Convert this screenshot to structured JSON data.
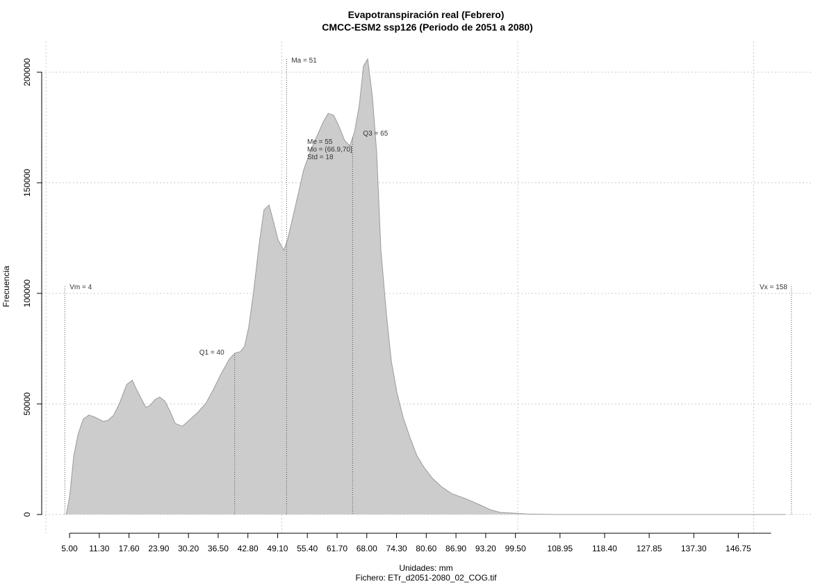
{
  "chart_data": {
    "type": "area",
    "title": "Evapotranspiración real (Febrero)",
    "subtitle": "CMCC-ESM2 ssp126 (Periodo de 2051 a 2080)",
    "x_label": "Unidades: mm",
    "caption": "Fichero: ETr_d2051-2080_02_COG.tif",
    "y_label": "Frecuencia",
    "color": "#cccccc",
    "line_color": "#9a9a9a",
    "grid": true,
    "xgrid": [
      0,
      50,
      100,
      150
    ],
    "xlim": [
      -0.9,
      162.6
    ],
    "ylim": [
      -8800,
      213800
    ],
    "xticks": [
      {
        "value": 5,
        "label": "5.00"
      },
      {
        "value": 11.3,
        "label": "11.30"
      },
      {
        "value": 17.6,
        "label": "17.60"
      },
      {
        "value": 23.9,
        "label": "23.90"
      },
      {
        "value": 30.2,
        "label": "30.20"
      },
      {
        "value": 36.5,
        "label": "36.50"
      },
      {
        "value": 42.8,
        "label": "42.80"
      },
      {
        "value": 49.1,
        "label": "49.10"
      },
      {
        "value": 55.4,
        "label": "55.40"
      },
      {
        "value": 61.7,
        "label": "61.70"
      },
      {
        "value": 68,
        "label": "68.00"
      },
      {
        "value": 74.3,
        "label": "74.30"
      },
      {
        "value": 80.6,
        "label": "80.60"
      },
      {
        "value": 86.9,
        "label": "86.90"
      },
      {
        "value": 93.2,
        "label": "93.20"
      },
      {
        "value": 99.5,
        "label": "99.50"
      },
      {
        "value": 108.95,
        "label": "108.95"
      },
      {
        "value": 118.4,
        "label": "118.40"
      },
      {
        "value": 127.85,
        "label": "127.85"
      },
      {
        "value": 137.3,
        "label": "137.30"
      },
      {
        "value": 146.75,
        "label": "146.75"
      }
    ],
    "yticks": [
      0,
      50000,
      100000,
      150000,
      200000
    ],
    "x": [
      4.3,
      5,
      5.9,
      6.8,
      7.9,
      9.1,
      10.4,
      12.1,
      13.1,
      14.3,
      15.6,
      17.1,
      18.3,
      19.4,
      21.2,
      22.1,
      23.1,
      24.1,
      25.2,
      26.4,
      27.4,
      28.9,
      30.3,
      32.2,
      33.9,
      35.5,
      37.1,
      38.9,
      40.1,
      41.2,
      42.1,
      43,
      44,
      45.2,
      46.2,
      47.3,
      48.2,
      49.2,
      50.4,
      51.2,
      52.4,
      53.6,
      54.6,
      55.8,
      57.3,
      58.8,
      59.8,
      61,
      62.1,
      63.3,
      64.4,
      65.4,
      66.4,
      67.3,
      68.2,
      69.2,
      70.1,
      71,
      72.2,
      73.2,
      74.4,
      75.7,
      77.2,
      78.6,
      80.1,
      81.9,
      83.8,
      86,
      88.9,
      91.9,
      94.1,
      96.3,
      99.3,
      102.2,
      108.1,
      156.7
    ],
    "values": [
      0,
      7900,
      26700,
      36200,
      43100,
      45000,
      44000,
      42100,
      42500,
      44700,
      50300,
      58800,
      60700,
      55700,
      48400,
      49400,
      51900,
      53100,
      51300,
      46200,
      41200,
      39900,
      42500,
      46200,
      50300,
      56600,
      63500,
      70400,
      73000,
      73600,
      76100,
      84900,
      100600,
      122600,
      137700,
      139900,
      132700,
      124200,
      119500,
      124200,
      135200,
      146200,
      155700,
      162900,
      170400,
      177700,
      181400,
      180500,
      175500,
      169200,
      166700,
      173000,
      184900,
      202800,
      206000,
      188700,
      163500,
      119500,
      89600,
      69200,
      55000,
      44000,
      34600,
      26700,
      21400,
      16400,
      12600,
      9400,
      7200,
      4400,
      2200,
      900,
      600,
      200,
      0,
      0
    ],
    "markers": [
      {
        "label": "Vm = 4",
        "value": 4
      },
      {
        "label": "Q1 = 40",
        "value": 40
      },
      {
        "label": "Ma = 51",
        "value": 51
      },
      {
        "label": "Q3 = 65",
        "value": 65
      },
      {
        "label": "Vx = 158",
        "value": 158
      }
    ],
    "stats": [
      "Me = 55",
      "Mo = (66.9,70]",
      "Std = 18"
    ]
  }
}
